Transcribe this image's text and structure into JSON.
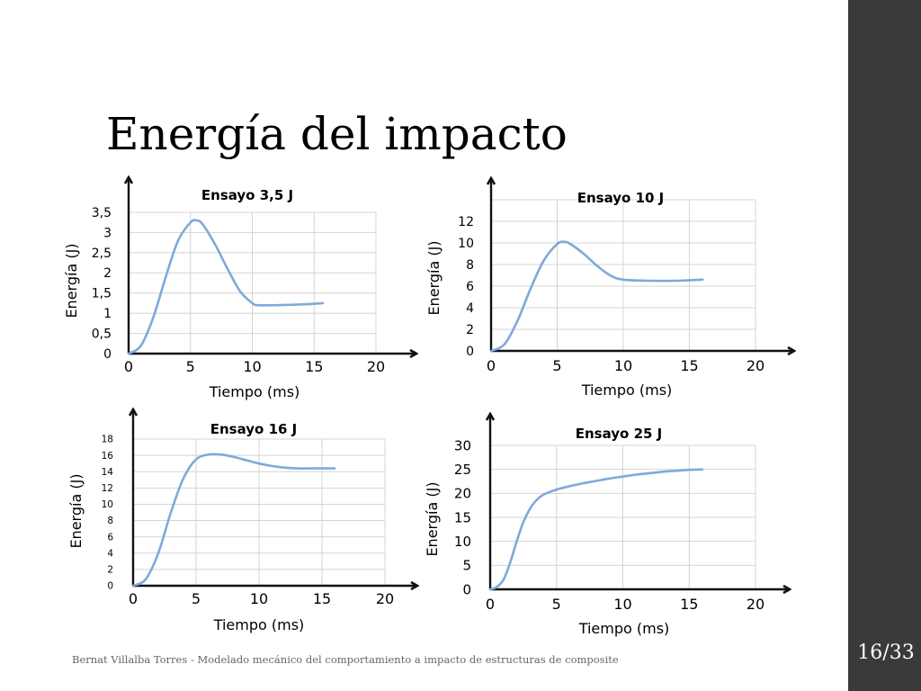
{
  "slide": {
    "title": "Energía del impacto",
    "footer": "Bernat Villalba Torres - Modelado mecánico del comportamiento a impacto de estructuras de composite",
    "page_number": "16/33"
  },
  "colors": {
    "series": "#7fa9d8",
    "grid": "#d4d4d4",
    "sidebar": "#3a3a3c"
  },
  "chart_data": [
    {
      "type": "line",
      "title": "Ensayo 3,5 J",
      "xlabel": "Tiempo (ms)",
      "ylabel": "Energía (J)",
      "xlim": [
        0,
        20
      ],
      "ylim": [
        0,
        3.5
      ],
      "xticks": [
        "0",
        "5",
        "10",
        "15",
        "20"
      ],
      "yticks": [
        "0",
        "0,5",
        "1",
        "1,5",
        "2",
        "2,5",
        "3",
        "3,5"
      ],
      "yticks_values": [
        0,
        0.5,
        1,
        1.5,
        2,
        2.5,
        3,
        3.5
      ],
      "grid": true,
      "series": [
        {
          "x": [
            0,
            1,
            2,
            3,
            4,
            5,
            5.5,
            6,
            7,
            8,
            9,
            10,
            10.5,
            12,
            14,
            15.7
          ],
          "y": [
            0,
            0.2,
            0.9,
            1.9,
            2.8,
            3.25,
            3.3,
            3.2,
            2.7,
            2.1,
            1.55,
            1.25,
            1.2,
            1.2,
            1.22,
            1.25
          ]
        }
      ]
    },
    {
      "type": "line",
      "title": "Ensayo 10 J",
      "xlabel": "Tiempo (ms)",
      "ylabel": "Energía (J)",
      "xlim": [
        0,
        20
      ],
      "ylim": [
        0,
        14
      ],
      "xticks": [
        "0",
        "5",
        "10",
        "15",
        "20"
      ],
      "yticks": [
        "0",
        "2",
        "4",
        "6",
        "8",
        "10",
        "12"
      ],
      "yticks_values": [
        0,
        2,
        4,
        6,
        8,
        10,
        12
      ],
      "grid": true,
      "series": [
        {
          "x": [
            0,
            1,
            2,
            3,
            4,
            5,
            5.5,
            6,
            7,
            8,
            9,
            10,
            12,
            14,
            16
          ],
          "y": [
            0,
            0.6,
            2.8,
            5.8,
            8.4,
            9.9,
            10.1,
            9.9,
            9.0,
            7.9,
            7.0,
            6.6,
            6.5,
            6.5,
            6.6
          ]
        }
      ]
    },
    {
      "type": "line",
      "title": "Ensayo 16 J",
      "xlabel": "Tiempo (ms)",
      "ylabel": "Energía (J)",
      "xlim": [
        0,
        20
      ],
      "ylim": [
        0,
        18
      ],
      "xticks": [
        "0",
        "5",
        "10",
        "15",
        "20"
      ],
      "yticks": [
        "0",
        "2",
        "4",
        "6",
        "8",
        "10",
        "12",
        "14",
        "16",
        "18"
      ],
      "yticks_values": [
        0,
        2,
        4,
        6,
        8,
        10,
        12,
        14,
        16,
        18
      ],
      "grid": true,
      "series": [
        {
          "x": [
            0,
            1,
            2,
            3,
            4,
            5,
            6,
            7,
            8,
            9,
            10,
            11,
            12,
            13,
            14,
            15,
            16
          ],
          "y": [
            0,
            0.8,
            4.0,
            9.0,
            13.2,
            15.5,
            16.1,
            16.1,
            15.8,
            15.4,
            15.0,
            14.7,
            14.5,
            14.4,
            14.4,
            14.4,
            14.4
          ]
        }
      ]
    },
    {
      "type": "line",
      "title": "Ensayo 25 J",
      "xlabel": "Tiempo (ms)",
      "ylabel": "Energía (J)",
      "xlim": [
        0,
        20
      ],
      "ylim": [
        0,
        30
      ],
      "xticks": [
        "0",
        "5",
        "10",
        "15",
        "20"
      ],
      "yticks": [
        "0",
        "5",
        "10",
        "15",
        "20",
        "25",
        "30"
      ],
      "yticks_values": [
        0,
        5,
        10,
        15,
        20,
        25,
        30
      ],
      "grid": true,
      "series": [
        {
          "x": [
            0,
            0.5,
            1,
            1.5,
            2,
            2.5,
            3,
            3.5,
            4,
            5,
            6,
            7,
            8,
            9,
            10,
            11,
            12,
            13,
            14,
            15,
            16
          ],
          "y": [
            0,
            0.5,
            2.0,
            5.5,
            10.0,
            14.0,
            16.8,
            18.6,
            19.7,
            20.8,
            21.5,
            22.1,
            22.6,
            23.1,
            23.5,
            23.9,
            24.2,
            24.5,
            24.7,
            24.9,
            25.0
          ]
        }
      ]
    }
  ]
}
